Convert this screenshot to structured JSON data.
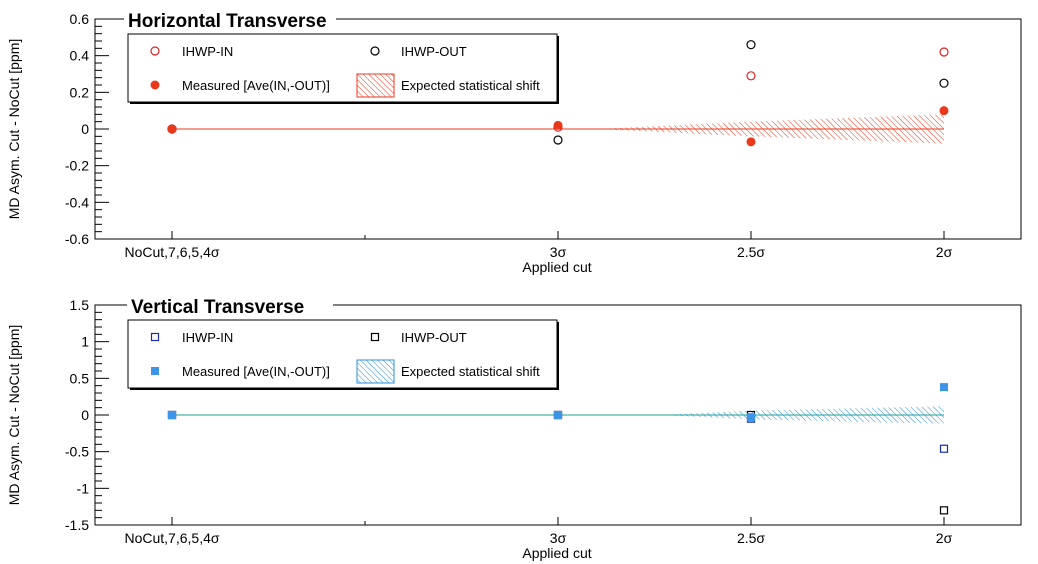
{
  "chart_data": [
    {
      "type": "scatter",
      "title": "Horizontal Transverse",
      "xlabel": "Applied cut",
      "ylabel": "MD Asym. Cut - NoCut [ppm]",
      "categories": [
        "NoCut,7,6,5,4σ",
        "3σ",
        "2.5σ",
        "2σ"
      ],
      "ylim": [
        -0.6,
        0.6
      ],
      "yticks": [
        "0.6",
        "0.4",
        "0.2",
        "0",
        "-0.2",
        "-0.4",
        "-0.6"
      ],
      "grid": false,
      "legend_position": "top-left",
      "colors": {
        "in": "#e02020",
        "out": "#000000",
        "measured": "#e8391c",
        "band": "#e8391c"
      },
      "series": [
        {
          "name": "IHWP-IN",
          "marker": "open-circle",
          "values": [
            0,
            0.01,
            0.29,
            0.42
          ]
        },
        {
          "name": "IHWP-OUT",
          "marker": "open-circle",
          "values": [
            0,
            -0.06,
            0.46,
            0.25
          ]
        },
        {
          "name": "Measured [Ave(IN,-OUT)]",
          "marker": "filled-circle",
          "values": [
            0,
            0.02,
            -0.07,
            0.1
          ]
        },
        {
          "name": "Expected statistical shift",
          "marker": "hatched-band",
          "half_width": [
            0,
            0.0,
            0.04,
            0.08
          ]
        }
      ]
    },
    {
      "type": "scatter",
      "title": "Vertical Transverse",
      "xlabel": "Applied cut",
      "ylabel": "MD Asym. Cut - NoCut [ppm]",
      "categories": [
        "NoCut,7,6,5,4σ",
        "3σ",
        "2.5σ",
        "2σ"
      ],
      "ylim": [
        -1.5,
        1.5
      ],
      "yticks": [
        "1.5",
        "1",
        "0.5",
        "0",
        "-0.5",
        "-1",
        "-1.5"
      ],
      "grid": false,
      "legend_position": "top-left",
      "colors": {
        "in": "#1a2bb0",
        "out": "#000000",
        "measured": "#3d95e8",
        "band": "#2a8fd8"
      },
      "series": [
        {
          "name": "IHWP-IN",
          "marker": "open-square",
          "values": [
            0,
            0,
            -0.05,
            -0.46
          ]
        },
        {
          "name": "IHWP-OUT",
          "marker": "open-square",
          "values": [
            0,
            0,
            0,
            -1.3
          ]
        },
        {
          "name": "Measured [Ave(IN,-OUT)]",
          "marker": "filled-square",
          "values": [
            0,
            0,
            -0.03,
            0.38
          ]
        },
        {
          "name": "Expected statistical shift",
          "marker": "hatched-band",
          "half_width": [
            0,
            0,
            0.06,
            0.12
          ]
        }
      ]
    }
  ]
}
